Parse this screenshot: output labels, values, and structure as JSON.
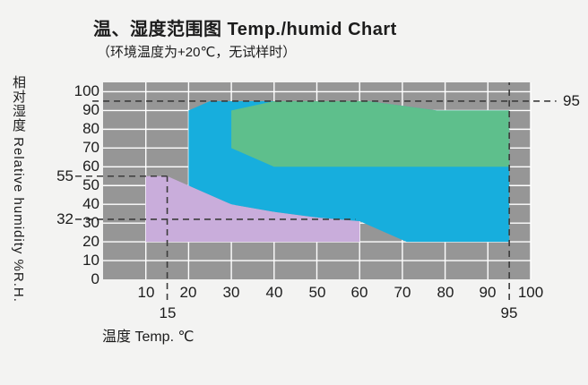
{
  "chart_data": {
    "type": "area",
    "title": "温、湿度范围图  Temp./humid Chart",
    "subtitle": "（环境温度为+20℃，无试样时）",
    "xlabel": "温度 Temp. ℃",
    "ylabel": "相对湿度 Relative humidity %R.H.",
    "xlim": [
      0,
      100
    ],
    "ylim": [
      0,
      105
    ],
    "x_ticks": [
      10,
      20,
      30,
      40,
      50,
      60,
      70,
      80,
      90,
      100
    ],
    "y_ticks": [
      0,
      10,
      20,
      30,
      40,
      50,
      60,
      70,
      80,
      90,
      100
    ],
    "grid": true,
    "legend_position": "none",
    "colors": {
      "plot_bg": "#969696",
      "grid": "#ffffff",
      "dash": "#3c3c3c",
      "blue": "#17aedd",
      "green": "#5ebf8c",
      "purple": "#c9addb"
    },
    "regions": [
      {
        "name": "humidity-range-low-temp-purple",
        "fill": "purple",
        "points": [
          [
            10,
            20
          ],
          [
            10,
            55
          ],
          [
            15,
            55
          ],
          [
            20,
            50
          ],
          [
            30,
            40
          ],
          [
            40,
            36
          ],
          [
            50,
            33
          ],
          [
            60,
            31
          ],
          [
            60,
            20
          ]
        ]
      },
      {
        "name": "humidity-range-standard-blue",
        "fill": "blue",
        "points": [
          [
            20,
            50
          ],
          [
            20,
            90
          ],
          [
            25,
            95
          ],
          [
            62,
            95
          ],
          [
            78,
            90
          ],
          [
            95,
            90
          ],
          [
            95,
            20
          ],
          [
            71,
            20
          ],
          [
            60,
            31
          ],
          [
            50,
            33
          ],
          [
            40,
            36
          ],
          [
            30,
            40
          ]
        ]
      },
      {
        "name": "humidity-range-inner-green",
        "fill": "green",
        "points": [
          [
            30,
            70
          ],
          [
            30,
            90
          ],
          [
            40,
            95
          ],
          [
            62,
            95
          ],
          [
            78,
            90
          ],
          [
            95,
            90
          ],
          [
            95,
            60
          ],
          [
            40,
            60
          ]
        ]
      }
    ],
    "reference_lines": [
      {
        "axis": "y",
        "value": 95,
        "label": "95",
        "label_side": "right",
        "from": -2.5,
        "to": 106
      },
      {
        "axis": "y",
        "value": 55,
        "label": "55",
        "label_side": "left",
        "from": -6.5,
        "to": 15
      },
      {
        "axis": "y",
        "value": 32,
        "label": "32",
        "label_side": "left",
        "from": -6.5,
        "to": 59
      },
      {
        "axis": "x",
        "value": 15,
        "label": "15",
        "label_side": "bottom",
        "from": -11,
        "to": 55
      },
      {
        "axis": "x",
        "value": 95,
        "label": "95",
        "label_side": "bottom",
        "from": -11,
        "to": 105
      }
    ]
  }
}
